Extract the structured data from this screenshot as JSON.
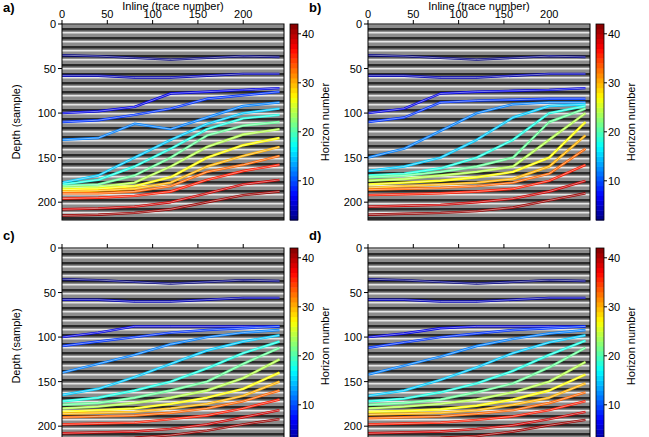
{
  "chart_data": [
    {
      "type": "line",
      "title": "a)",
      "xlabel": "Inline (trace number)",
      "ylabel": "Depth (sample)",
      "x": [
        0,
        40,
        80,
        120,
        160,
        200,
        240
      ],
      "xlim": [
        0,
        245
      ],
      "ylim": [
        220,
        0
      ],
      "xticks": [
        0,
        50,
        100,
        150,
        200
      ],
      "yticks": [
        0,
        50,
        100,
        150,
        200
      ],
      "tick_labels": true,
      "colorbar": {
        "label": "Horizon number",
        "range": [
          2,
          42
        ],
        "ticks": [
          10,
          20,
          30,
          40
        ]
      },
      "series": [
        {
          "horizon": 2,
          "values": [
            35,
            36,
            38,
            40,
            38,
            36,
            37
          ]
        },
        {
          "horizon": 4,
          "values": [
            58,
            58,
            60,
            60,
            58,
            56,
            56
          ]
        },
        {
          "horizon": 6,
          "values": [
            100,
            98,
            93,
            78,
            76,
            74,
            72
          ]
        },
        {
          "horizon": 9,
          "values": [
            110,
            108,
            102,
            95,
            84,
            80,
            76
          ]
        },
        {
          "horizon": 12,
          "values": [
            130,
            128,
            112,
            118,
            105,
            92,
            88
          ]
        },
        {
          "horizon": 15,
          "values": [
            178,
            170,
            150,
            130,
            112,
            100,
            95
          ]
        },
        {
          "horizon": 18,
          "values": [
            180,
            175,
            160,
            140,
            118,
            106,
            102
          ]
        },
        {
          "horizon": 21,
          "values": [
            182,
            180,
            170,
            150,
            125,
            114,
            110
          ]
        },
        {
          "horizon": 24,
          "values": [
            184,
            183,
            178,
            160,
            138,
            124,
            118
          ]
        },
        {
          "horizon": 27,
          "values": [
            186,
            185,
            182,
            172,
            150,
            136,
            128
          ]
        },
        {
          "horizon": 30,
          "values": [
            188,
            187,
            185,
            178,
            160,
            148,
            138
          ]
        },
        {
          "horizon": 33,
          "values": [
            190,
            190,
            188,
            182,
            166,
            158,
            148
          ]
        },
        {
          "horizon": 36,
          "values": [
            196,
            195,
            193,
            188,
            175,
            165,
            158
          ]
        },
        {
          "horizon": 39,
          "values": [
            208,
            207,
            205,
            200,
            190,
            180,
            175
          ]
        },
        {
          "horizon": 41,
          "values": [
            215,
            214,
            212,
            208,
            200,
            192,
            188
          ]
        }
      ]
    },
    {
      "type": "line",
      "title": "b)",
      "xlabel": "Inline (trace number)",
      "x": [
        0,
        40,
        80,
        120,
        160,
        200,
        240
      ],
      "xlim": [
        0,
        245
      ],
      "ylim": [
        220,
        0
      ],
      "xticks": [
        0,
        50,
        100,
        150,
        200
      ],
      "yticks": [
        0,
        50,
        100,
        150,
        200
      ],
      "tick_labels": true,
      "colorbar": {
        "label": "Horizon number",
        "range": [
          2,
          42
        ],
        "ticks": [
          10,
          20,
          30,
          40
        ]
      },
      "series": [
        {
          "horizon": 2,
          "values": [
            35,
            36,
            38,
            40,
            38,
            36,
            37
          ]
        },
        {
          "horizon": 4,
          "values": [
            58,
            58,
            60,
            60,
            58,
            56,
            56
          ]
        },
        {
          "horizon": 6,
          "values": [
            100,
            95,
            78,
            76,
            75,
            74,
            72
          ]
        },
        {
          "horizon": 9,
          "values": [
            110,
            105,
            88,
            86,
            85,
            84,
            84
          ]
        },
        {
          "horizon": 12,
          "values": [
            150,
            140,
            120,
            100,
            90,
            88,
            88
          ]
        },
        {
          "horizon": 15,
          "values": [
            165,
            160,
            150,
            130,
            105,
            92,
            90
          ]
        },
        {
          "horizon": 18,
          "values": [
            170,
            168,
            162,
            150,
            130,
            100,
            92
          ]
        },
        {
          "horizon": 21,
          "values": [
            172,
            170,
            166,
            160,
            150,
            110,
            95
          ]
        },
        {
          "horizon": 24,
          "values": [
            176,
            174,
            170,
            166,
            160,
            130,
            100
          ]
        },
        {
          "horizon": 27,
          "values": [
            180,
            178,
            176,
            172,
            166,
            150,
            110
          ]
        },
        {
          "horizon": 30,
          "values": [
            184,
            182,
            180,
            178,
            174,
            160,
            125
          ]
        },
        {
          "horizon": 33,
          "values": [
            186,
            185,
            184,
            182,
            178,
            168,
            140
          ]
        },
        {
          "horizon": 36,
          "values": [
            192,
            191,
            190,
            188,
            185,
            176,
            158
          ]
        },
        {
          "horizon": 39,
          "values": [
            205,
            204,
            203,
            200,
            196,
            188,
            176
          ]
        },
        {
          "horizon": 41,
          "values": [
            214,
            213,
            212,
            210,
            206,
            198,
            190
          ]
        }
      ]
    },
    {
      "type": "line",
      "title": "c)",
      "ylabel": "Depth (sample)",
      "x": [
        0,
        40,
        80,
        120,
        160,
        200,
        240
      ],
      "xlim": [
        0,
        245
      ],
      "ylim": [
        220,
        0
      ],
      "xticks": [
        0,
        50,
        100,
        150,
        200
      ],
      "yticks": [
        0,
        50,
        100,
        150,
        200
      ],
      "tick_labels": "y",
      "colorbar": {
        "label": "Horizon number",
        "range": [
          2,
          42
        ],
        "ticks": [
          10,
          20,
          30,
          40
        ]
      },
      "series": [
        {
          "horizon": 2,
          "values": [
            35,
            36,
            38,
            40,
            38,
            36,
            37
          ]
        },
        {
          "horizon": 4,
          "values": [
            58,
            58,
            60,
            60,
            58,
            56,
            56
          ]
        },
        {
          "horizon": 6,
          "values": [
            100,
            95,
            88,
            88,
            88,
            88,
            88
          ]
        },
        {
          "horizon": 9,
          "values": [
            110,
            105,
            100,
            95,
            92,
            90,
            88
          ]
        },
        {
          "horizon": 12,
          "values": [
            140,
            130,
            120,
            108,
            100,
            95,
            92
          ]
        },
        {
          "horizon": 15,
          "values": [
            165,
            158,
            145,
            130,
            115,
            105,
            98
          ]
        },
        {
          "horizon": 18,
          "values": [
            172,
            168,
            160,
            150,
            135,
            118,
            105
          ]
        },
        {
          "horizon": 21,
          "values": [
            176,
            174,
            168,
            160,
            150,
            130,
            112
          ]
        },
        {
          "horizon": 24,
          "values": [
            180,
            178,
            174,
            168,
            160,
            146,
            125
          ]
        },
        {
          "horizon": 27,
          "values": [
            184,
            182,
            180,
            175,
            168,
            158,
            140
          ]
        },
        {
          "horizon": 30,
          "values": [
            186,
            185,
            184,
            180,
            175,
            166,
            150
          ]
        },
        {
          "horizon": 33,
          "values": [
            190,
            189,
            188,
            185,
            180,
            172,
            160
          ]
        },
        {
          "horizon": 36,
          "values": [
            198,
            197,
            196,
            192,
            188,
            180,
            170
          ]
        },
        {
          "horizon": 39,
          "values": [
            208,
            207,
            206,
            203,
            198,
            190,
            182
          ]
        },
        {
          "horizon": 41,
          "values": [
            215,
            214,
            213,
            210,
            205,
            198,
            192
          ]
        }
      ]
    },
    {
      "type": "line",
      "title": "d)",
      "x": [
        0,
        40,
        80,
        120,
        160,
        200,
        240
      ],
      "xlim": [
        0,
        245
      ],
      "ylim": [
        220,
        0
      ],
      "xticks": [
        0,
        50,
        100,
        150,
        200
      ],
      "yticks": [
        0,
        50,
        100,
        150,
        200
      ],
      "tick_labels": "y",
      "colorbar": {
        "label": "Horizon number",
        "range": [
          2,
          42
        ],
        "ticks": [
          10,
          20,
          30,
          40
        ]
      },
      "series": [
        {
          "horizon": 2,
          "values": [
            35,
            36,
            38,
            40,
            38,
            36,
            37
          ]
        },
        {
          "horizon": 4,
          "values": [
            58,
            58,
            60,
            60,
            58,
            56,
            56
          ]
        },
        {
          "horizon": 6,
          "values": [
            100,
            96,
            90,
            88,
            88,
            88,
            88
          ]
        },
        {
          "horizon": 9,
          "values": [
            112,
            106,
            100,
            96,
            92,
            90,
            88
          ]
        },
        {
          "horizon": 12,
          "values": [
            142,
            132,
            122,
            110,
            102,
            96,
            92
          ]
        },
        {
          "horizon": 15,
          "values": [
            166,
            160,
            148,
            134,
            118,
            106,
            98
          ]
        },
        {
          "horizon": 18,
          "values": [
            172,
            169,
            162,
            152,
            138,
            120,
            104
          ]
        },
        {
          "horizon": 21,
          "values": [
            176,
            174,
            170,
            162,
            152,
            134,
            112
          ]
        },
        {
          "horizon": 24,
          "values": [
            180,
            178,
            175,
            170,
            162,
            150,
            128
          ]
        },
        {
          "horizon": 27,
          "values": [
            184,
            183,
            181,
            177,
            170,
            160,
            142
          ]
        },
        {
          "horizon": 30,
          "values": [
            187,
            186,
            185,
            182,
            176,
            168,
            152
          ]
        },
        {
          "horizon": 33,
          "values": [
            191,
            190,
            189,
            186,
            182,
            174,
            162
          ]
        },
        {
          "horizon": 36,
          "values": [
            198,
            197,
            196,
            193,
            189,
            182,
            172
          ]
        },
        {
          "horizon": 39,
          "values": [
            208,
            207,
            206,
            203,
            199,
            192,
            184
          ]
        },
        {
          "horizon": 41,
          "values": [
            215,
            214,
            213,
            211,
            206,
            199,
            193
          ]
        }
      ]
    }
  ]
}
